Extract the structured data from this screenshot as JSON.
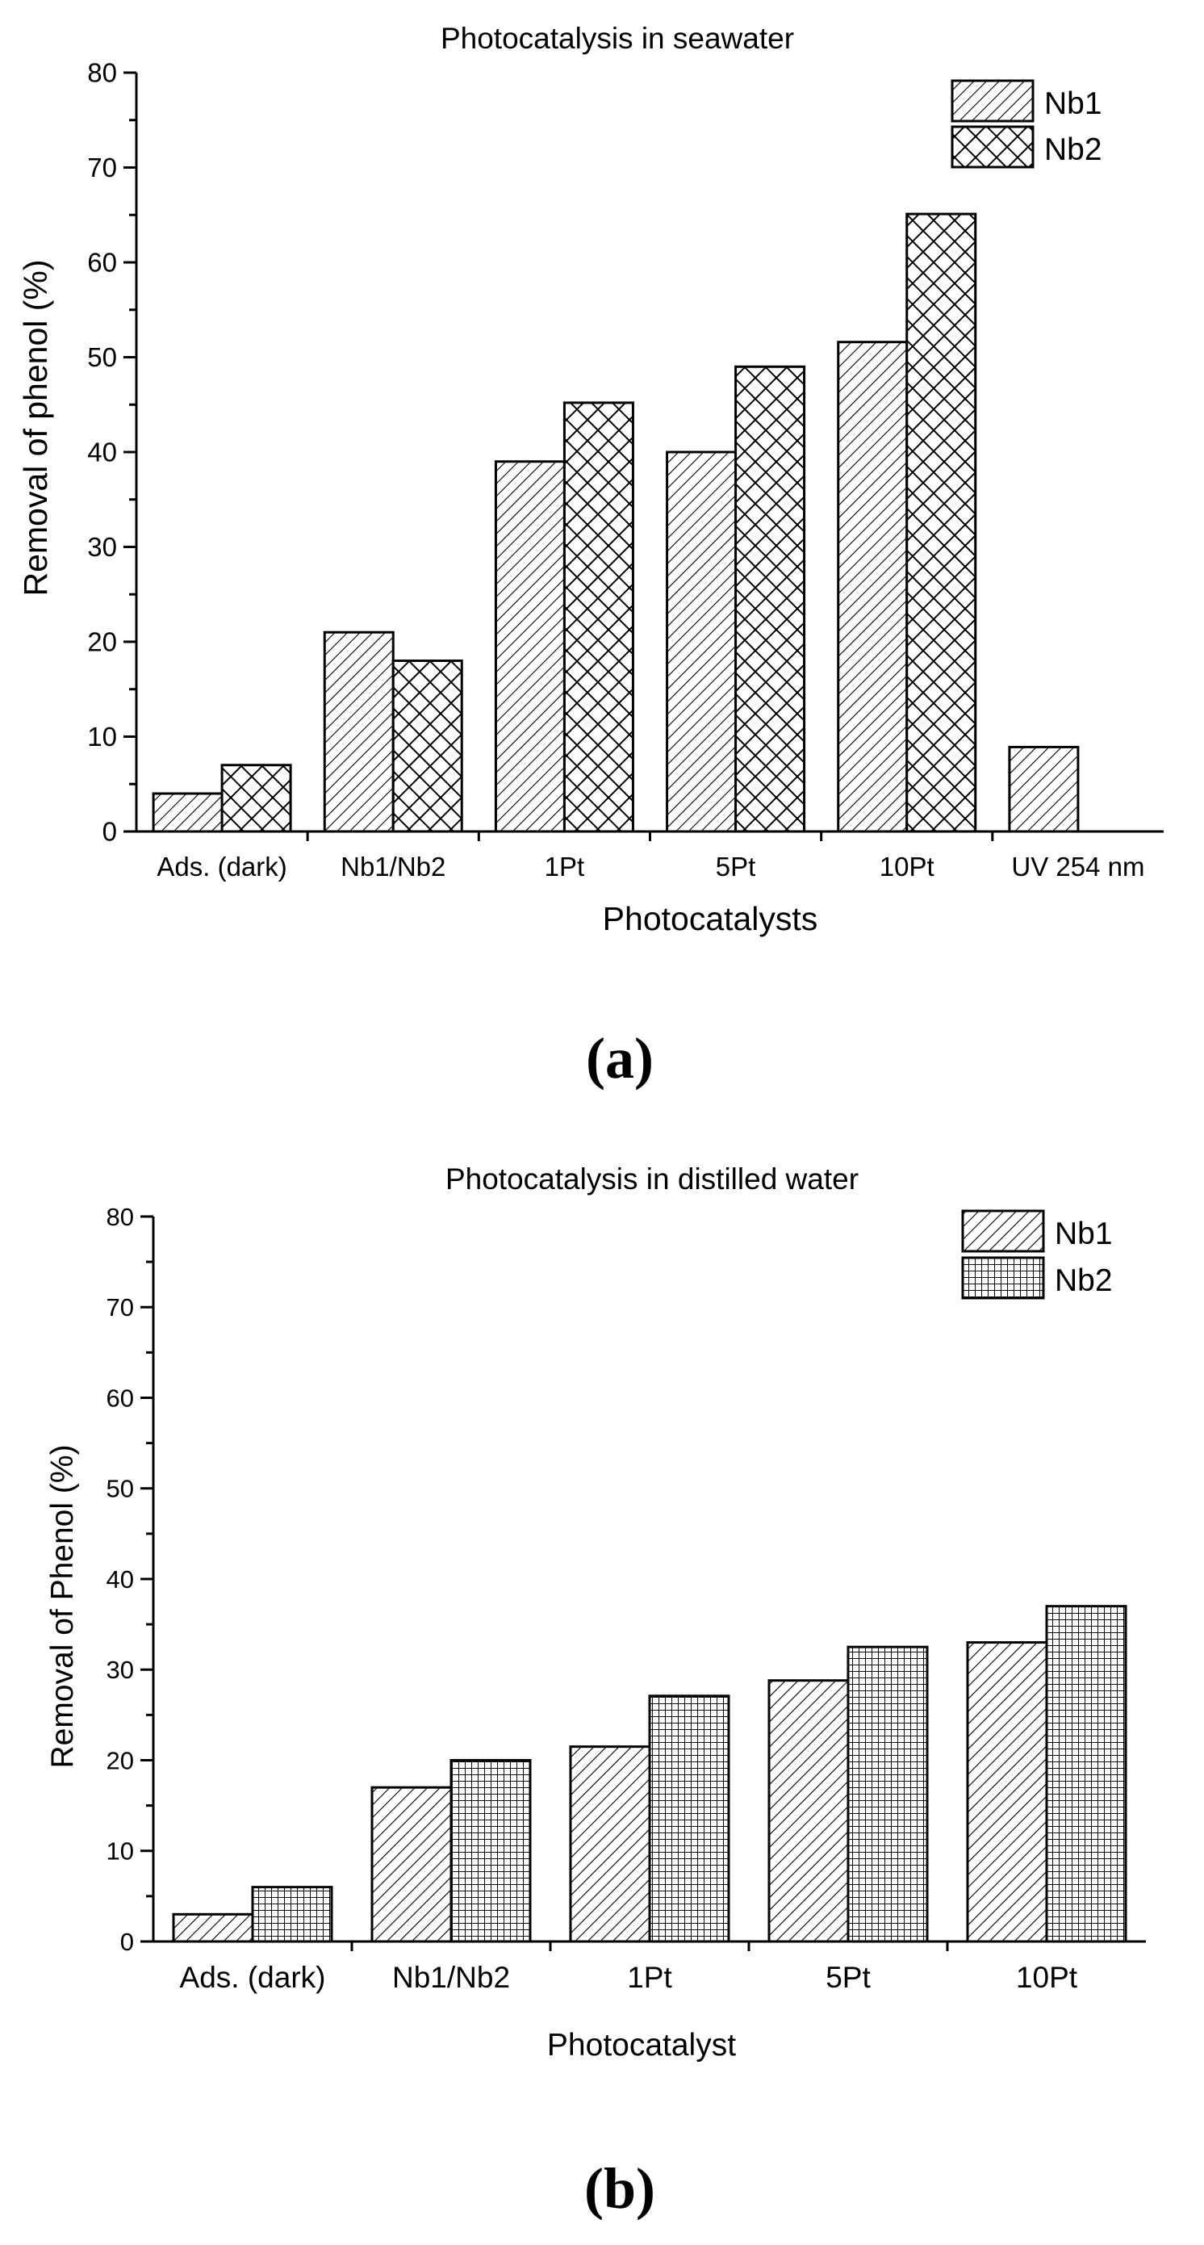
{
  "chart_data": [
    {
      "type": "bar",
      "title": "Photocatalysis in seawater",
      "xlabel": "Photocatalysts",
      "ylabel": "Removal of phenol (%)",
      "ylim": [
        0,
        80
      ],
      "yticks": [
        "0",
        "10",
        "20",
        "30",
        "40",
        "50",
        "60",
        "70",
        "80"
      ],
      "categories": [
        "Ads. (dark)",
        "Nb1/Nb2",
        "1Pt",
        "5Pt",
        "10Pt",
        "UV 254 nm"
      ],
      "series": [
        {
          "name": "Nb1",
          "pattern": "diagonal",
          "values": [
            4,
            21,
            39,
            40,
            51.6,
            8.9
          ]
        },
        {
          "name": "Nb2",
          "pattern": "crosshatch",
          "values": [
            7,
            18,
            45.2,
            49,
            65.1,
            null
          ]
        }
      ],
      "legend_position": "top-right",
      "caption": "(a)"
    },
    {
      "type": "bar",
      "title": "Photocatalysis in distilled water",
      "xlabel": "Photocatalyst",
      "ylabel": "Removal of Phenol  (%)",
      "ylim": [
        0,
        80
      ],
      "yticks": [
        "0",
        "10",
        "20",
        "30",
        "40",
        "50",
        "60",
        "70",
        "80"
      ],
      "categories": [
        "Ads. (dark)",
        "Nb1/Nb2",
        "1Pt",
        "5Pt",
        "10Pt"
      ],
      "series": [
        {
          "name": "Nb1",
          "pattern": "diagonal",
          "values": [
            3,
            17,
            21.5,
            28.8,
            33
          ]
        },
        {
          "name": "Nb2",
          "pattern": "grid",
          "values": [
            6,
            20,
            27.1,
            32.5,
            37
          ]
        }
      ],
      "legend_position": "top-right",
      "caption": "(b)"
    }
  ]
}
